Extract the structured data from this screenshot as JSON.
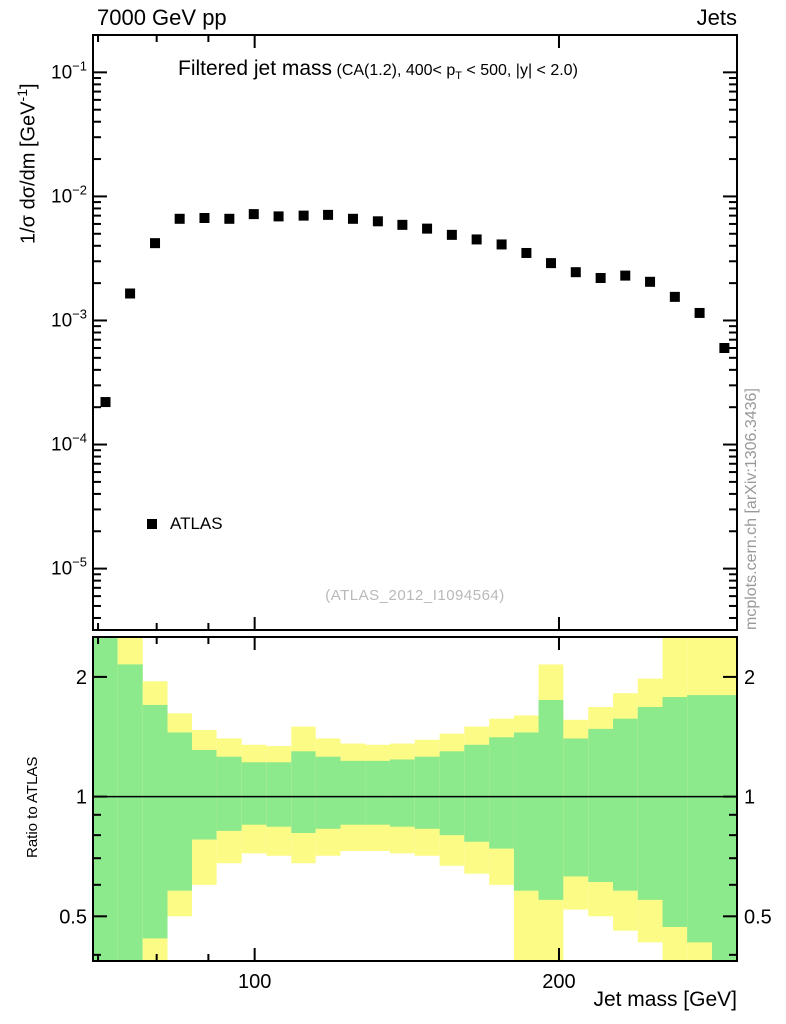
{
  "header": {
    "left": "7000 GeV pp",
    "right": "Jets"
  },
  "title": {
    "main": "Filtered jet mass",
    "cond_pre": "(CA(1.2), 400< p",
    "cond_sub": "T",
    "cond_post": " < 500, |y| < 2.0)"
  },
  "axes": {
    "y_title_pre": "1/σ dσ/dm [GeV",
    "y_title_sup": "-1",
    "y_title_post": "]",
    "ratio_title": "Ratio to ATLAS",
    "x_title": "Jet mass [GeV]"
  },
  "legend": {
    "label": "ATLAS"
  },
  "watermark": "(ATLAS_2012_I1094564)",
  "side_note": "mcplots.cern.ch [arXiv:1306.3436]",
  "colors": {
    "band_outer": "#fbfb86",
    "band_inner": "#8ce98c",
    "marker": "#000000",
    "frame": "#000000",
    "watermark": "#b9b9b9",
    "side_note": "#999999"
  },
  "chart_data": [
    {
      "type": "scatter",
      "title": "Filtered jet mass (CA(1.2), 400 < pT < 500, |y| < 2.0)",
      "xlabel": "Jet mass [GeV]",
      "ylabel": "1/sigma dsigma/dm [GeV^-1]",
      "xscale": "log",
      "yscale": "log",
      "xlim": [
        69.2,
        300
      ],
      "ylim": [
        3.2e-06,
        0.2
      ],
      "grid": false,
      "legend_position": "inside-left",
      "x_major_ticks": [
        100,
        200,
        300
      ],
      "x_labeled_ticks": [
        100,
        200
      ],
      "y_tick_exponents": [
        -1,
        -2,
        -3,
        -4,
        -5
      ],
      "series": [
        {
          "name": "ATLAS",
          "marker": "square",
          "color": "#000000",
          "x": [
            71.2,
            75.3,
            79.7,
            84.3,
            89.2,
            94.4,
            99.8,
            105.6,
            111.8,
            118.2,
            125.1,
            132.4,
            140.0,
            148.1,
            156.7,
            165.8,
            175.5,
            185.7,
            196.4,
            207.8,
            219.9,
            232.6,
            246.1,
            260.4,
            275.5,
            291.5
          ],
          "y": [
            0.00022,
            0.00165,
            0.0042,
            0.0066,
            0.0067,
            0.0066,
            0.0072,
            0.0069,
            0.007,
            0.0071,
            0.0066,
            0.0063,
            0.0059,
            0.0055,
            0.0049,
            0.0045,
            0.0041,
            0.0035,
            0.0029,
            0.00245,
            0.0022,
            0.0023,
            0.00205,
            0.00155,
            0.00115,
            0.0006
          ]
        }
      ]
    },
    {
      "type": "band-ratio",
      "ylabel": "Ratio to ATLAS",
      "yscale": "log",
      "ylim": [
        0.386,
        2.52
      ],
      "reference_line": 1,
      "y_labeled_ticks": [
        0.5,
        1,
        2
      ],
      "y_minor_ticks": [
        0.4,
        0.6,
        0.7,
        0.8,
        0.9
      ],
      "bin_edges": [
        69.2,
        73.2,
        77.5,
        82.0,
        86.7,
        91.7,
        97.1,
        102.7,
        108.7,
        114.9,
        121.6,
        128.7,
        136.1,
        144.0,
        152.4,
        161.2,
        170.6,
        180.5,
        190.9,
        202.0,
        213.8,
        226.2,
        239.3,
        253.2,
        267.8,
        283.4,
        300.0
      ],
      "outer_lo": [
        0.38,
        0.38,
        0.38,
        0.5,
        0.6,
        0.68,
        0.72,
        0.71,
        0.68,
        0.71,
        0.73,
        0.73,
        0.72,
        0.71,
        0.67,
        0.64,
        0.6,
        0.38,
        0.38,
        0.52,
        0.5,
        0.46,
        0.43,
        0.38,
        0.38,
        0.38
      ],
      "outer_hi": [
        2.55,
        2.55,
        1.95,
        1.62,
        1.47,
        1.4,
        1.35,
        1.34,
        1.5,
        1.4,
        1.36,
        1.35,
        1.36,
        1.39,
        1.44,
        1.5,
        1.57,
        1.6,
        2.15,
        1.56,
        1.68,
        1.82,
        1.98,
        2.55,
        2.55,
        2.55
      ],
      "inner_lo": [
        0.38,
        0.38,
        0.44,
        0.58,
        0.78,
        0.82,
        0.85,
        0.84,
        0.81,
        0.83,
        0.85,
        0.85,
        0.84,
        0.83,
        0.8,
        0.77,
        0.74,
        0.58,
        0.55,
        0.63,
        0.61,
        0.58,
        0.55,
        0.47,
        0.43,
        0.38
      ],
      "inner_hi": [
        2.55,
        2.15,
        1.7,
        1.45,
        1.31,
        1.26,
        1.22,
        1.22,
        1.3,
        1.26,
        1.23,
        1.23,
        1.24,
        1.26,
        1.3,
        1.35,
        1.41,
        1.45,
        1.75,
        1.4,
        1.48,
        1.57,
        1.68,
        1.78,
        1.8,
        1.8
      ]
    }
  ]
}
